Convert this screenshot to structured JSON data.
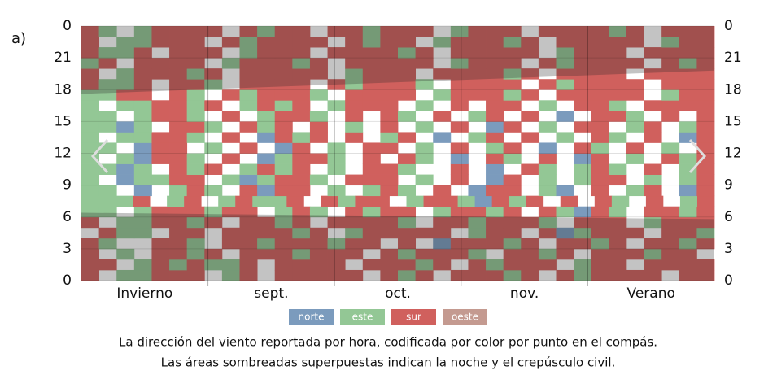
{
  "chart_data": {
    "type": "heatmap",
    "panel_label": "a)",
    "categories": [
      "Invierno",
      "sept.",
      "oct.",
      "nov.",
      "Verano"
    ],
    "series": [
      {
        "name": "norte",
        "color": "#7b9bbd"
      },
      {
        "name": "este",
        "color": "#93c795"
      },
      {
        "name": "sur",
        "color": "#d0605d"
      },
      {
        "name": "oeste",
        "color": "#c49a90"
      }
    ],
    "z": [
      "2.11222.12.22222.212.22212.212222.22",
      "22.1212112.2222.22212.21222.122.2222",
      "2.1.2212.2221222.212221.2212.222122.",
      "21..221.221222122.2.022212.2212.2212",
      ".211.22.222212.122222.122.201222.221",
      "2.112212.2212.22221.2212221.222.1222",
      "11.1222122.121.2122.12212.21021.2212",
      "1112.12.12112.2122.12210212.2.21.2.12",
      "11.0.121.2022.1.121.2.022.10.2.12.02",
      "1.01122.101221.222.1.2.02.1.122.1.12",
      "1101.212.1212.1.221..2.0.21.121.2.12",
      "1.10221.2.01221.2.21.0.21.2.02.1.212",
      "11.022.1.2.02.1.22.1.2.12.0.21.2.1.2",
      "1.11221.2.0212.2.12.0.12.2.1.21.2.02",
      "1101.221.212.2.1.2.1.2.02.1.22.12.12",
      "11.1221.2.1221.2.21.2.12.2.0.221.2.2",
      "1.112212.1212.1222.1.2.22.1.221.2222",
      "1122.21.212221.2222.122212.22222.122",
      "2112.221.2222.212221.2222.212222.222",
      "2.122212.22222.1222.222212.2222.2222",
      "12.2222.122212.22222.1222.212222.212",
      "2112.222.1222.222212.22222.1222.2222",
      "2.11222.212222.2122.122212.22222.122",
      "21.12222.2122.221222.1222.222212.222"
    ],
    "night": {
      "dawn": [
        6.4,
        5.8
      ],
      "dusk": [
        17.6,
        19.8
      ]
    },
    "ylim": [
      0,
      24
    ],
    "yticks": [
      0,
      3,
      6,
      9,
      12,
      15,
      18,
      21,
      {
        "value": 24,
        "label": "0"
      }
    ],
    "caption": [
      "La dirección del viento reportada por hora, codificada por color por punto en el compás.",
      "Las áreas sombreadas superpuestas indican la noche y el crepúsculo civil."
    ]
  }
}
